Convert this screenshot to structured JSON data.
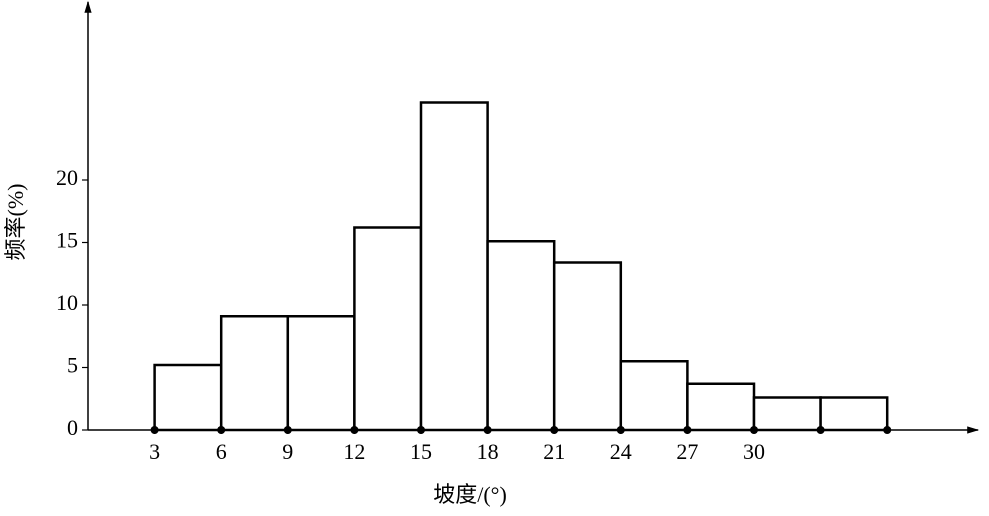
{
  "chart_data": {
    "type": "histogram",
    "xlabel": "坡度/(°)",
    "ylabel": "频率(%)",
    "bins": [
      3,
      6,
      9,
      12,
      15,
      18,
      21,
      24,
      27,
      30,
      33,
      36
    ],
    "values": [
      5.2,
      9.1,
      9.1,
      16.2,
      26.2,
      15.1,
      13.4,
      5.5,
      3.7,
      2.6,
      2.6
    ],
    "color": "#ffffff",
    "xlim": [
      0,
      40
    ],
    "xticks": [
      3,
      6,
      9,
      12,
      15,
      18,
      21,
      24,
      27,
      30
    ],
    "ylim": [
      0,
      34
    ],
    "yticks": [
      0,
      5,
      10,
      15,
      20
    ]
  }
}
